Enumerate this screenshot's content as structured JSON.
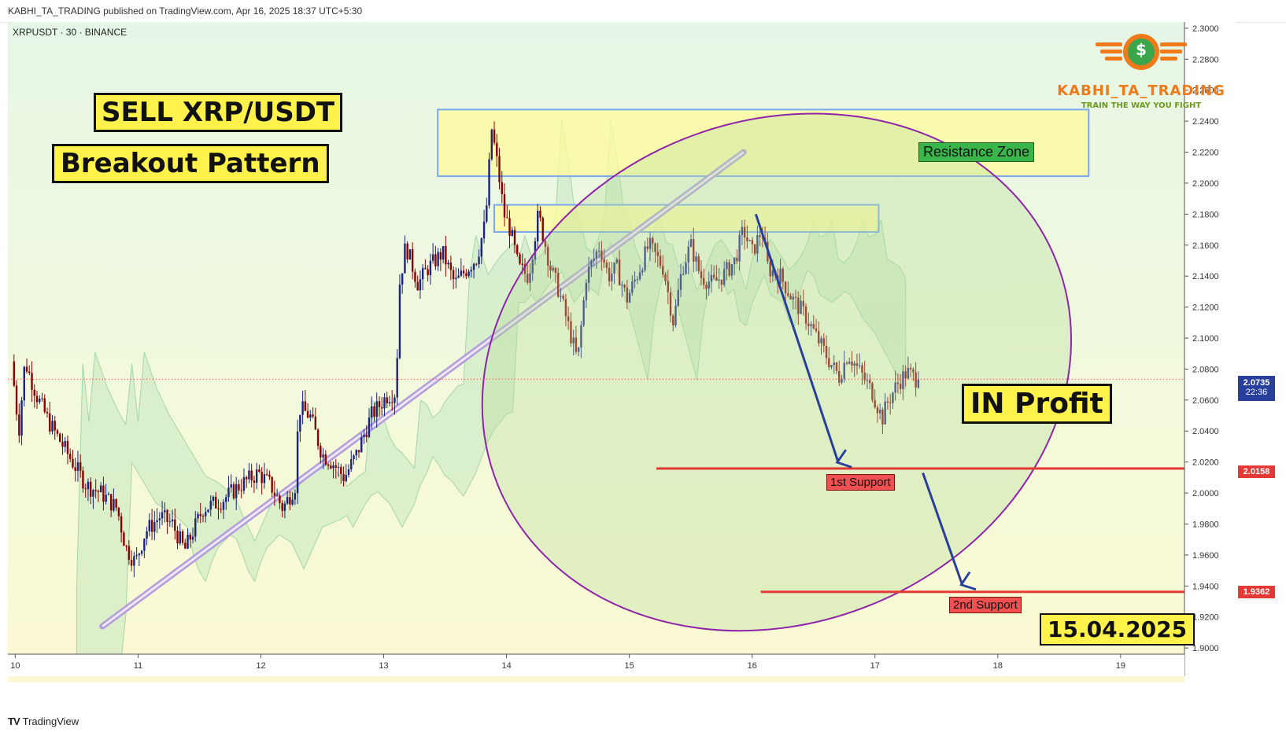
{
  "header": {
    "published_text": "KABHI_TA_TRADING published on TradingView.com, Apr 16, 2025 18:37 UTC+5:30"
  },
  "ticker": {
    "label": "XRPUSDT · 30 · BINANCE"
  },
  "brand": {
    "name": "KABHI_TA_TRADING",
    "tagline": "TRAIN THE WAY YOU FIGHT",
    "logo_symbol": "$"
  },
  "annotations": {
    "title": "SELL XRP/USDT",
    "subtitle": "Breakout Pattern",
    "resistance_label": "Resistance Zone",
    "profit_label": "IN Profit",
    "support1_label": "1st Support",
    "support2_label": "2nd Support",
    "date_label": "15.04.2025"
  },
  "price_tags": {
    "current_price": "2.0735",
    "countdown": "22:36",
    "support1": "2.0158",
    "support2": "1.9362"
  },
  "footer": {
    "brand": "TradingView"
  },
  "colors": {
    "bullish_candle": "#1a237e",
    "bearish_candle": "#8b0000",
    "support_line": "#e53935",
    "resistance_box_fill": "#fffb9c",
    "resistance_box_border": "#7aa7f0",
    "ellipse_border": "#8e24aa",
    "arrow": "#283f9c",
    "trendline": "#b39ddb",
    "label_yellow": "#fff24a",
    "brand_orange": "#f07a1a"
  },
  "chart_data": {
    "type": "candlestick",
    "symbol": "XRPUSDT",
    "timeframe": "30",
    "exchange": "BINANCE",
    "x_ticks": [
      "10",
      "11",
      "12",
      "13",
      "14",
      "15",
      "16",
      "17",
      "18",
      "19"
    ],
    "y_ticks": [
      "2.3000",
      "2.2800",
      "2.2600",
      "2.2400",
      "2.2200",
      "2.2000",
      "2.1800",
      "2.1600",
      "2.1400",
      "2.1200",
      "2.1000",
      "2.0800",
      "2.0600",
      "2.0400",
      "2.0200",
      "2.0000",
      "1.9800",
      "1.9600",
      "1.9400",
      "1.9200",
      "1.9000"
    ],
    "ylim": [
      1.896,
      2.304
    ],
    "xlim": [
      9.94,
      19.52
    ],
    "current_price": 2.0735,
    "resistance_zone": {
      "from_day": 13.44,
      "to_day": 18.74,
      "low": 2.2045,
      "high": 2.2475
    },
    "inner_resistance_zone": {
      "from_day": 13.9,
      "to_day": 17.03,
      "low": 2.1685,
      "high": 2.186
    },
    "support_levels": [
      {
        "label": "1st Support",
        "price": 2.0158,
        "from_day": 15.22
      },
      {
        "label": "2nd Support",
        "price": 1.9362,
        "from_day": 16.07
      }
    ],
    "trendline": {
      "from": [
        10.71,
        1.914
      ],
      "to": [
        15.93,
        2.22
      ]
    },
    "projection_arrows": [
      {
        "from": [
          16.03,
          2.18
        ],
        "to": [
          16.7,
          2.02
        ]
      },
      {
        "from": [
          17.39,
          2.013
        ],
        "to": [
          17.71,
          1.941
        ]
      }
    ],
    "profit_ellipse": {
      "center": [
        16.2,
        2.078
      ],
      "rx_days": 2.45,
      "ry_price": 0.162
    },
    "path_points": [
      [
        9.94,
        1.895
      ],
      [
        9.99,
        2.085
      ],
      [
        10.05,
        2.04
      ],
      [
        10.1,
        2.085
      ],
      [
        10.2,
        2.062
      ],
      [
        10.3,
        2.045
      ],
      [
        10.45,
        2.025
      ],
      [
        10.6,
        2.005
      ],
      [
        10.72,
        2.0
      ],
      [
        10.85,
        1.99
      ],
      [
        10.92,
        1.965
      ],
      [
        11.0,
        1.955
      ],
      [
        11.08,
        1.975
      ],
      [
        11.2,
        1.985
      ],
      [
        11.3,
        1.98
      ],
      [
        11.4,
        1.963
      ],
      [
        11.55,
        1.99
      ],
      [
        11.7,
        1.995
      ],
      [
        11.85,
        2.005
      ],
      [
        12.0,
        2.013
      ],
      [
        12.1,
        2.005
      ],
      [
        12.2,
        1.99
      ],
      [
        12.3,
        2.005
      ],
      [
        12.33,
        2.055
      ],
      [
        12.42,
        2.05
      ],
      [
        12.52,
        2.025
      ],
      [
        12.6,
        2.02
      ],
      [
        12.7,
        2.01
      ],
      [
        12.8,
        2.025
      ],
      [
        12.92,
        2.05
      ],
      [
        13.05,
        2.063
      ],
      [
        13.12,
        2.065
      ],
      [
        13.15,
        2.135
      ],
      [
        13.2,
        2.16
      ],
      [
        13.3,
        2.135
      ],
      [
        13.38,
        2.145
      ],
      [
        13.5,
        2.155
      ],
      [
        13.6,
        2.135
      ],
      [
        13.7,
        2.145
      ],
      [
        13.78,
        2.152
      ],
      [
        13.85,
        2.175
      ],
      [
        13.9,
        2.235
      ],
      [
        13.95,
        2.21
      ],
      [
        14.0,
        2.18
      ],
      [
        14.05,
        2.17
      ],
      [
        14.12,
        2.145
      ],
      [
        14.2,
        2.14
      ],
      [
        14.28,
        2.18
      ],
      [
        14.38,
        2.145
      ],
      [
        14.45,
        2.13
      ],
      [
        14.55,
        2.1
      ],
      [
        14.6,
        2.085
      ],
      [
        14.67,
        2.14
      ],
      [
        14.78,
        2.16
      ],
      [
        14.85,
        2.14
      ],
      [
        14.92,
        2.145
      ],
      [
        15.0,
        2.125
      ],
      [
        15.08,
        2.14
      ],
      [
        15.18,
        2.16
      ],
      [
        15.3,
        2.145
      ],
      [
        15.38,
        2.11
      ],
      [
        15.45,
        2.145
      ],
      [
        15.52,
        2.16
      ],
      [
        15.6,
        2.14
      ],
      [
        15.7,
        2.135
      ],
      [
        15.78,
        2.14
      ],
      [
        15.88,
        2.15
      ],
      [
        15.95,
        2.17
      ],
      [
        16.02,
        2.155
      ],
      [
        16.1,
        2.17
      ],
      [
        16.15,
        2.145
      ],
      [
        16.25,
        2.14
      ],
      [
        16.35,
        2.125
      ],
      [
        16.45,
        2.115
      ],
      [
        16.55,
        2.1
      ],
      [
        16.65,
        2.085
      ],
      [
        16.73,
        2.075
      ],
      [
        16.8,
        2.09
      ],
      [
        16.9,
        2.078
      ],
      [
        17.0,
        2.065
      ],
      [
        17.08,
        2.048
      ],
      [
        17.12,
        2.058
      ],
      [
        17.2,
        2.07
      ],
      [
        17.28,
        2.078
      ],
      [
        17.36,
        2.0735
      ]
    ],
    "path_note": "Approximate price path read from the candlesticks (day-of-month on x, price on y)."
  }
}
